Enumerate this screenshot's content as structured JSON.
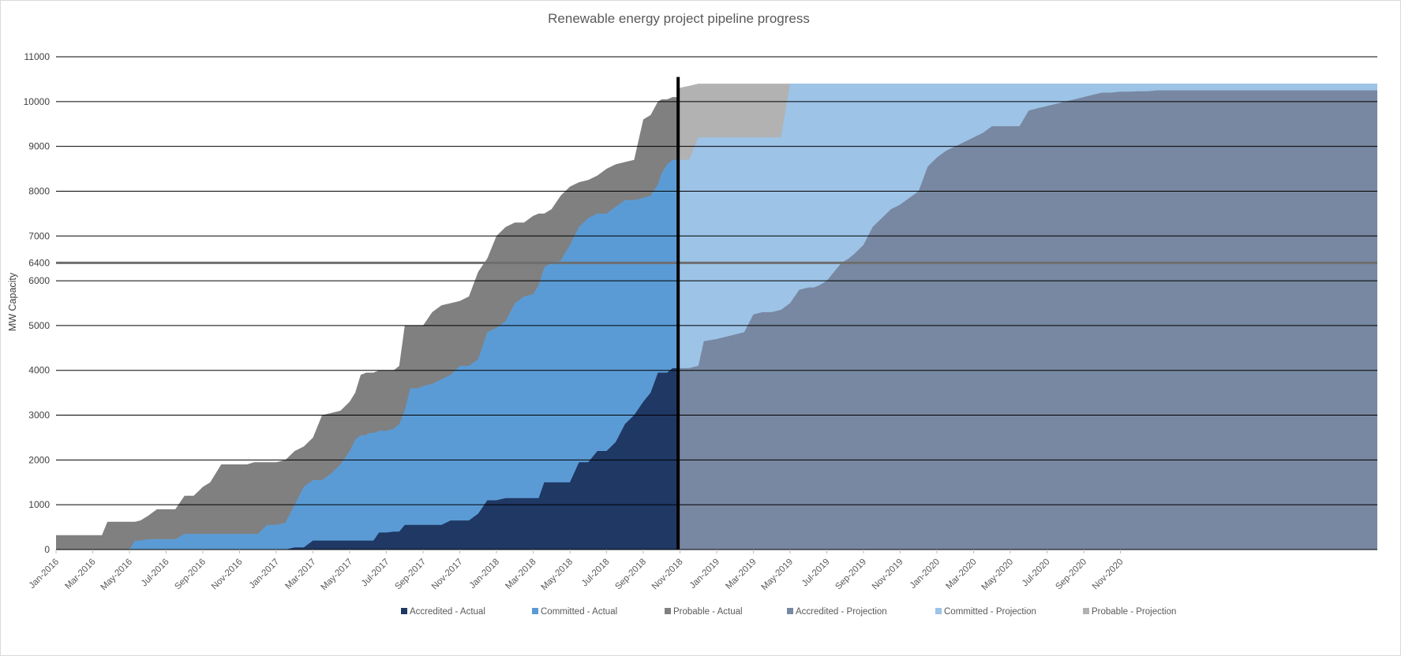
{
  "chart_data": {
    "type": "area",
    "title": "Renewable energy project pipeline progress",
    "xlabel": "",
    "ylabel": "MW Capacity",
    "ylim": [
      0,
      11000
    ],
    "y_ticks": [
      0,
      1000,
      2000,
      3000,
      4000,
      5000,
      6000,
      7000,
      8000,
      9000,
      10000,
      11000
    ],
    "target_line": {
      "value": 6400,
      "label": "6400"
    },
    "projection_start": "Nov-2018",
    "x_tick_labels": [
      "Jan-2016",
      "Mar-2016",
      "May-2016",
      "Jul-2016",
      "Sep-2016",
      "Nov-2016",
      "Jan-2017",
      "Mar-2017",
      "May-2017",
      "Jul-2017",
      "Sep-2017",
      "Nov-2017",
      "Jan-2018",
      "Mar-2018",
      "May-2018",
      "Jul-2018",
      "Sep-2018",
      "Nov-2018",
      "Jan-2019",
      "Mar-2019",
      "May-2019",
      "Jul-2019",
      "Sep-2019",
      "Nov-2019",
      "Jan-2020",
      "Mar-2020",
      "May-2020",
      "Jul-2020",
      "Sep-2020",
      "Nov-2020"
    ],
    "grid": true,
    "legend_position": "bottom",
    "colors": {
      "accredited_actual": "#1f3864",
      "committed_actual": "#5b9bd5",
      "probable_actual": "#808080",
      "accredited_projection": "#7888a2",
      "committed_projection": "#9dc3e6",
      "probable_projection": "#b2b2b2",
      "target_line": "#6e6e6e",
      "now_line": "#000000"
    },
    "series_actual": {
      "x": [
        0,
        0.8,
        1.3,
        2,
        2.5,
        2.8,
        3,
        3.5,
        3.8,
        4,
        4.3,
        4.6,
        5,
        5.5,
        6,
        6.5,
        7,
        7.5,
        8,
        8.4,
        9,
        9.5,
        10,
        10.4,
        10.8,
        11,
        11.5,
        12,
        12.5,
        13,
        13.5,
        14,
        14.5,
        15,
        15.5,
        16,
        16.3,
        16.6,
        16.9,
        17,
        17.3,
        17.6,
        18,
        18.4,
        18.7,
        19,
        19.3,
        19.7,
        20,
        20.5,
        21,
        21.5,
        22,
        22.5,
        23,
        23.5,
        24,
        24.5,
        25,
        25.5,
        26,
        26.3,
        26.6,
        27,
        27.5,
        28,
        28.5,
        29,
        29.5,
        30,
        30.5,
        31,
        31.5,
        32,
        32.4,
        32.8,
        33,
        33.3,
        33.6,
        33.9
      ],
      "accredited": [
        0,
        0,
        0,
        0,
        0,
        0,
        0,
        0,
        0,
        0,
        0,
        0,
        0,
        0,
        0,
        0,
        0,
        0,
        0,
        0,
        0,
        0,
        0,
        0,
        0,
        0,
        0,
        0,
        0,
        50,
        50,
        200,
        200,
        200,
        200,
        200,
        200,
        200,
        200,
        200,
        200,
        380,
        380,
        400,
        400,
        550,
        550,
        550,
        550,
        550,
        550,
        650,
        650,
        650,
        800,
        1100,
        1100,
        1150,
        1150,
        1150,
        1150,
        1150,
        1500,
        1500,
        1500,
        1500,
        1950,
        1950,
        2200,
        2200,
        2400,
        2800,
        3000,
        3300,
        3500,
        3950,
        3950,
        3950,
        4050,
        4050
      ],
      "committed": [
        0,
        0,
        0,
        0,
        0,
        0,
        0,
        0,
        0,
        0,
        200,
        200,
        230,
        230,
        230,
        230,
        350,
        350,
        350,
        350,
        350,
        350,
        350,
        350,
        350,
        350,
        550,
        550,
        600,
        1000,
        1400,
        1550,
        1550,
        1700,
        1900,
        2200,
        2450,
        2550,
        2550,
        2600,
        2600,
        2650,
        2650,
        2700,
        2800,
        3100,
        3600,
        3600,
        3650,
        3700,
        3800,
        3900,
        4100,
        4100,
        4250,
        4850,
        4950,
        5100,
        5500,
        5650,
        5700,
        5900,
        6300,
        6400,
        6450,
        6800,
        7200,
        7400,
        7500,
        7500,
        7650,
        7800,
        7800,
        7850,
        7900,
        8150,
        8400,
        8600,
        8700,
        8700
      ],
      "probable": [
        320,
        320,
        320,
        320,
        320,
        620,
        620,
        620,
        620,
        620,
        620,
        650,
        750,
        900,
        900,
        900,
        1200,
        1200,
        1400,
        1500,
        1900,
        1900,
        1900,
        1900,
        1950,
        1950,
        1950,
        1950,
        2000,
        2200,
        2300,
        2500,
        3000,
        3050,
        3100,
        3300,
        3500,
        3900,
        3950,
        3950,
        3950,
        4000,
        4000,
        4000,
        4100,
        5000,
        5000,
        5000,
        5000,
        5300,
        5450,
        5500,
        5550,
        5650,
        6200,
        6500,
        7000,
        7200,
        7300,
        7300,
        7450,
        7500,
        7500,
        7600,
        7900,
        8100,
        8200,
        8250,
        8350,
        8500,
        8600,
        8650,
        8700,
        9600,
        9700,
        10000,
        10050,
        10050,
        10100,
        10100
      ]
    },
    "series_projection": {
      "x": [
        33.9,
        34.5,
        35,
        35.3,
        36,
        36.5,
        37,
        37.5,
        38,
        38.5,
        39,
        39.5,
        40,
        40.5,
        41,
        41.3,
        41.6,
        42,
        42.4,
        42.8,
        43.2,
        43.5,
        44,
        44.5,
        45,
        45.5,
        46,
        46.5,
        47,
        47.5,
        48,
        48.5,
        49,
        49.5,
        50,
        50.5,
        51,
        51.5,
        52,
        52.5,
        53,
        53.5,
        54,
        54.5,
        55,
        55.5,
        56,
        56.5,
        57,
        57.5,
        58,
        58.5,
        59,
        59.5,
        60,
        60.5,
        61,
        61.5,
        62,
        62.5,
        63,
        63.5,
        64,
        64.5,
        65,
        65.5,
        66,
        66.5,
        67,
        67.5,
        68,
        68.5,
        69,
        69.5,
        70,
        70.5,
        71,
        71.5,
        72
      ],
      "accredited": [
        4050,
        4050,
        4100,
        4650,
        4700,
        4750,
        4800,
        4850,
        5250,
        5300,
        5300,
        5350,
        5500,
        5800,
        5850,
        5850,
        5900,
        6000,
        6200,
        6400,
        6500,
        6600,
        6800,
        7200,
        7400,
        7600,
        7700,
        7850,
        8000,
        8550,
        8750,
        8900,
        9000,
        9100,
        9200,
        9300,
        9450,
        9450,
        9450,
        9450,
        9800,
        9850,
        9900,
        9950,
        10000,
        10050,
        10100,
        10150,
        10200,
        10200,
        10220,
        10220,
        10230,
        10230,
        10250,
        10250,
        10250,
        10250,
        10250,
        10250,
        10250,
        10250,
        10250,
        10250,
        10250,
        10250,
        10250,
        10250,
        10250,
        10250,
        10250,
        10250,
        10250,
        10250,
        10250,
        10250,
        10250,
        10250,
        10250
      ],
      "committed": [
        8700,
        8700,
        9200,
        9200,
        9200,
        9200,
        9200,
        9200,
        9200,
        9200,
        9200,
        9200,
        10400,
        10400,
        10400,
        10400,
        10400,
        10400,
        10400,
        10400,
        10400,
        10400,
        10400,
        10400,
        10400,
        10400,
        10400,
        10400,
        10400,
        10400,
        10400,
        10400,
        10400,
        10400,
        10400,
        10400,
        10400,
        10400,
        10400,
        10400,
        10400,
        10400,
        10400,
        10400,
        10400,
        10400,
        10400,
        10400,
        10400,
        10400,
        10400,
        10400,
        10400,
        10400,
        10400,
        10400,
        10400,
        10400,
        10400,
        10400,
        10400,
        10400,
        10400,
        10400,
        10400,
        10400,
        10400,
        10400,
        10400,
        10400,
        10400,
        10400,
        10400,
        10400,
        10400,
        10400,
        10400,
        10400,
        10400
      ],
      "probable": [
        10300,
        10350,
        10400,
        10400,
        10400,
        10400,
        10400,
        10400,
        10400,
        10400,
        10400,
        10400,
        10400,
        10400,
        10400,
        10400,
        10400,
        10400,
        10400,
        10400,
        10400,
        10400,
        10400,
        10400,
        10400,
        10400,
        10400,
        10400,
        10400,
        10400,
        10400,
        10400,
        10400,
        10400,
        10400,
        10400,
        10400,
        10400,
        10400,
        10400,
        10400,
        10400,
        10400,
        10400,
        10400,
        10400,
        10400,
        10400,
        10400,
        10400,
        10400,
        10400,
        10400,
        10400,
        10400,
        10400,
        10400,
        10400,
        10400,
        10400,
        10400,
        10400,
        10400,
        10400,
        10400,
        10400,
        10400,
        10400,
        10400,
        10400,
        10400,
        10400,
        10400,
        10400,
        10400,
        10400,
        10400,
        10400,
        10400
      ]
    },
    "legend": [
      {
        "label": "Accredited - Actual",
        "color": "#1f3864"
      },
      {
        "label": "Committed - Actual",
        "color": "#5b9bd5"
      },
      {
        "label": "Probable - Actual",
        "color": "#808080"
      },
      {
        "label": "Accredited - Projection",
        "color": "#7888a2"
      },
      {
        "label": "Committed - Projection",
        "color": "#9dc3e6"
      },
      {
        "label": "Probable - Projection",
        "color": "#b2b2b2"
      }
    ]
  }
}
